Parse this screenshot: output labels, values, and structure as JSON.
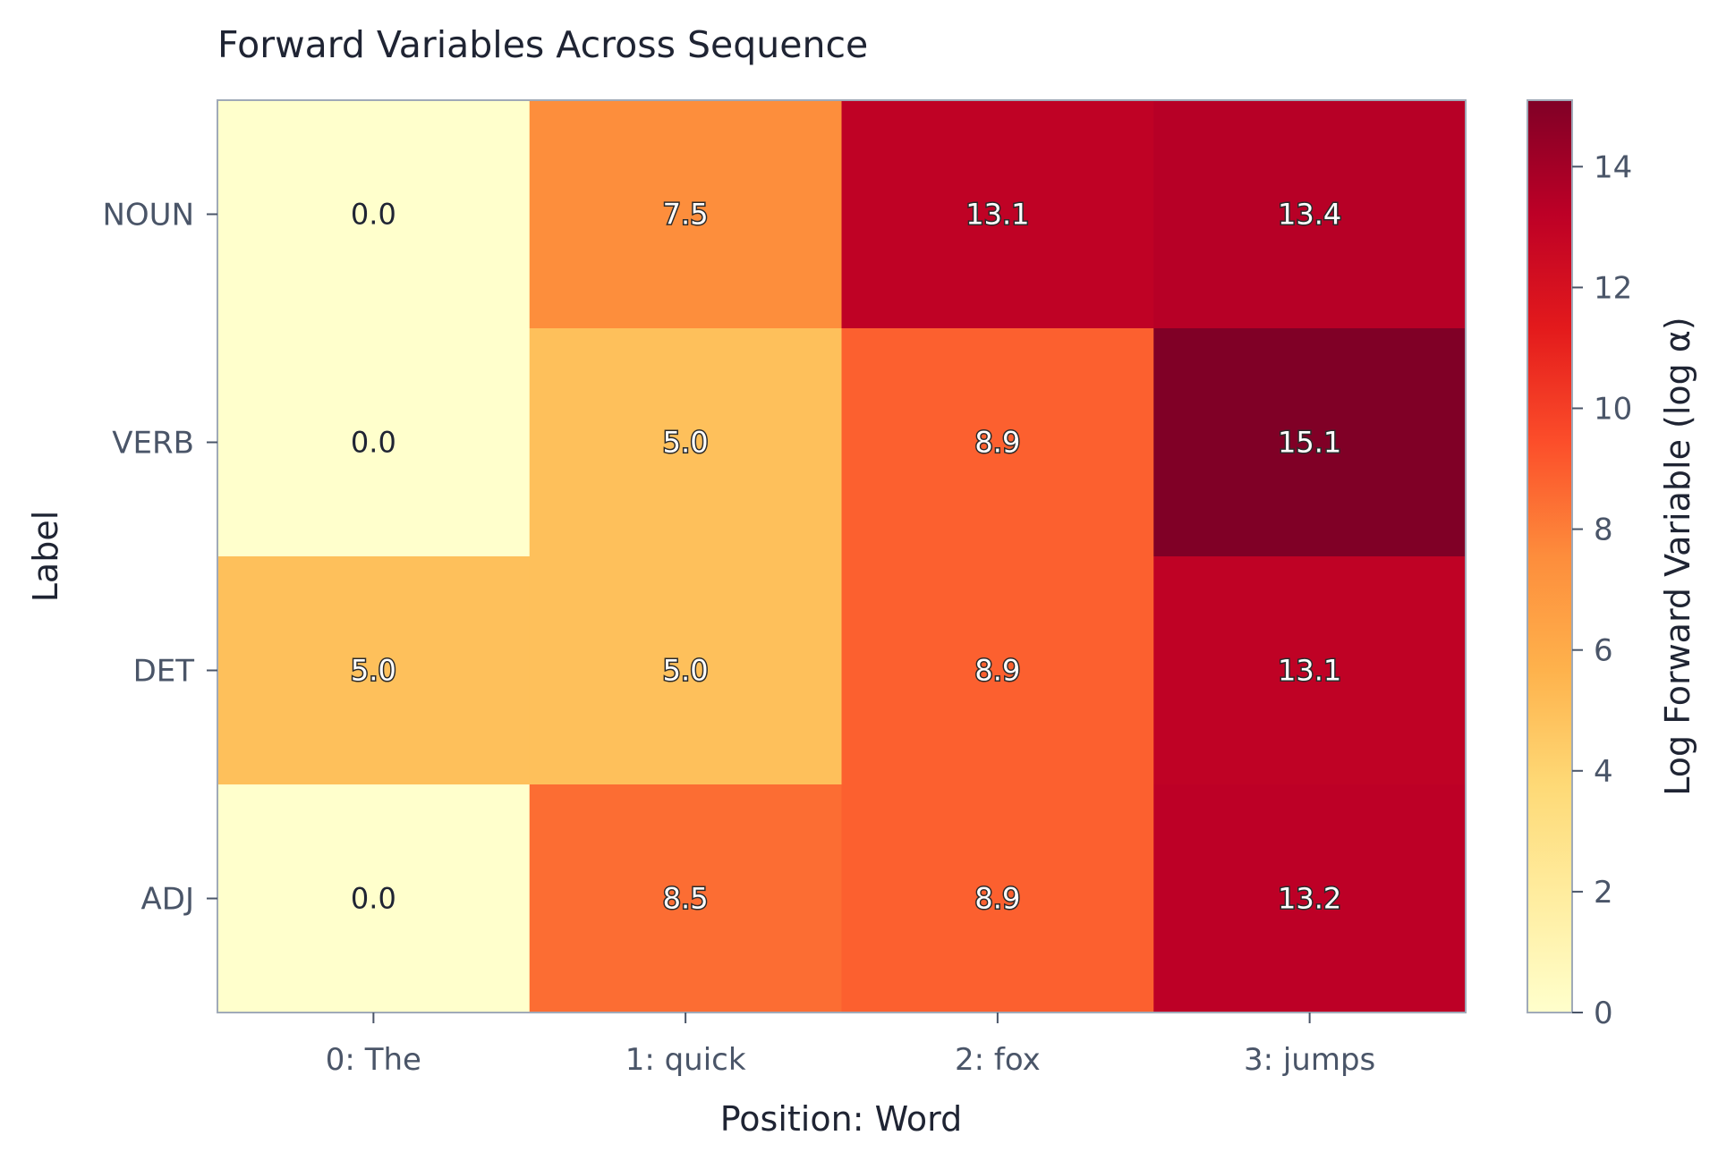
{
  "chart_data": {
    "type": "heatmap",
    "title": "Forward Variables Across Sequence",
    "xlabel": "Position: Word",
    "ylabel": "Label",
    "x_categories": [
      "0: The",
      "1: quick",
      "2: fox",
      "3: jumps"
    ],
    "y_categories": [
      "NOUN",
      "VERB",
      "DET",
      "ADJ"
    ],
    "values": [
      [
        0.0,
        7.5,
        13.1,
        13.4
      ],
      [
        0.0,
        5.0,
        8.9,
        15.1
      ],
      [
        5.0,
        5.0,
        8.9,
        13.1
      ],
      [
        0.0,
        8.5,
        8.9,
        13.2
      ]
    ],
    "value_format_decimals": 1,
    "colorbar": {
      "label": "Log Forward Variable (log α)",
      "range": [
        0,
        15.1
      ],
      "ticks": [
        0,
        2,
        4,
        6,
        8,
        10,
        12,
        14
      ],
      "colormap": "YlOrRd"
    },
    "grid": false
  }
}
